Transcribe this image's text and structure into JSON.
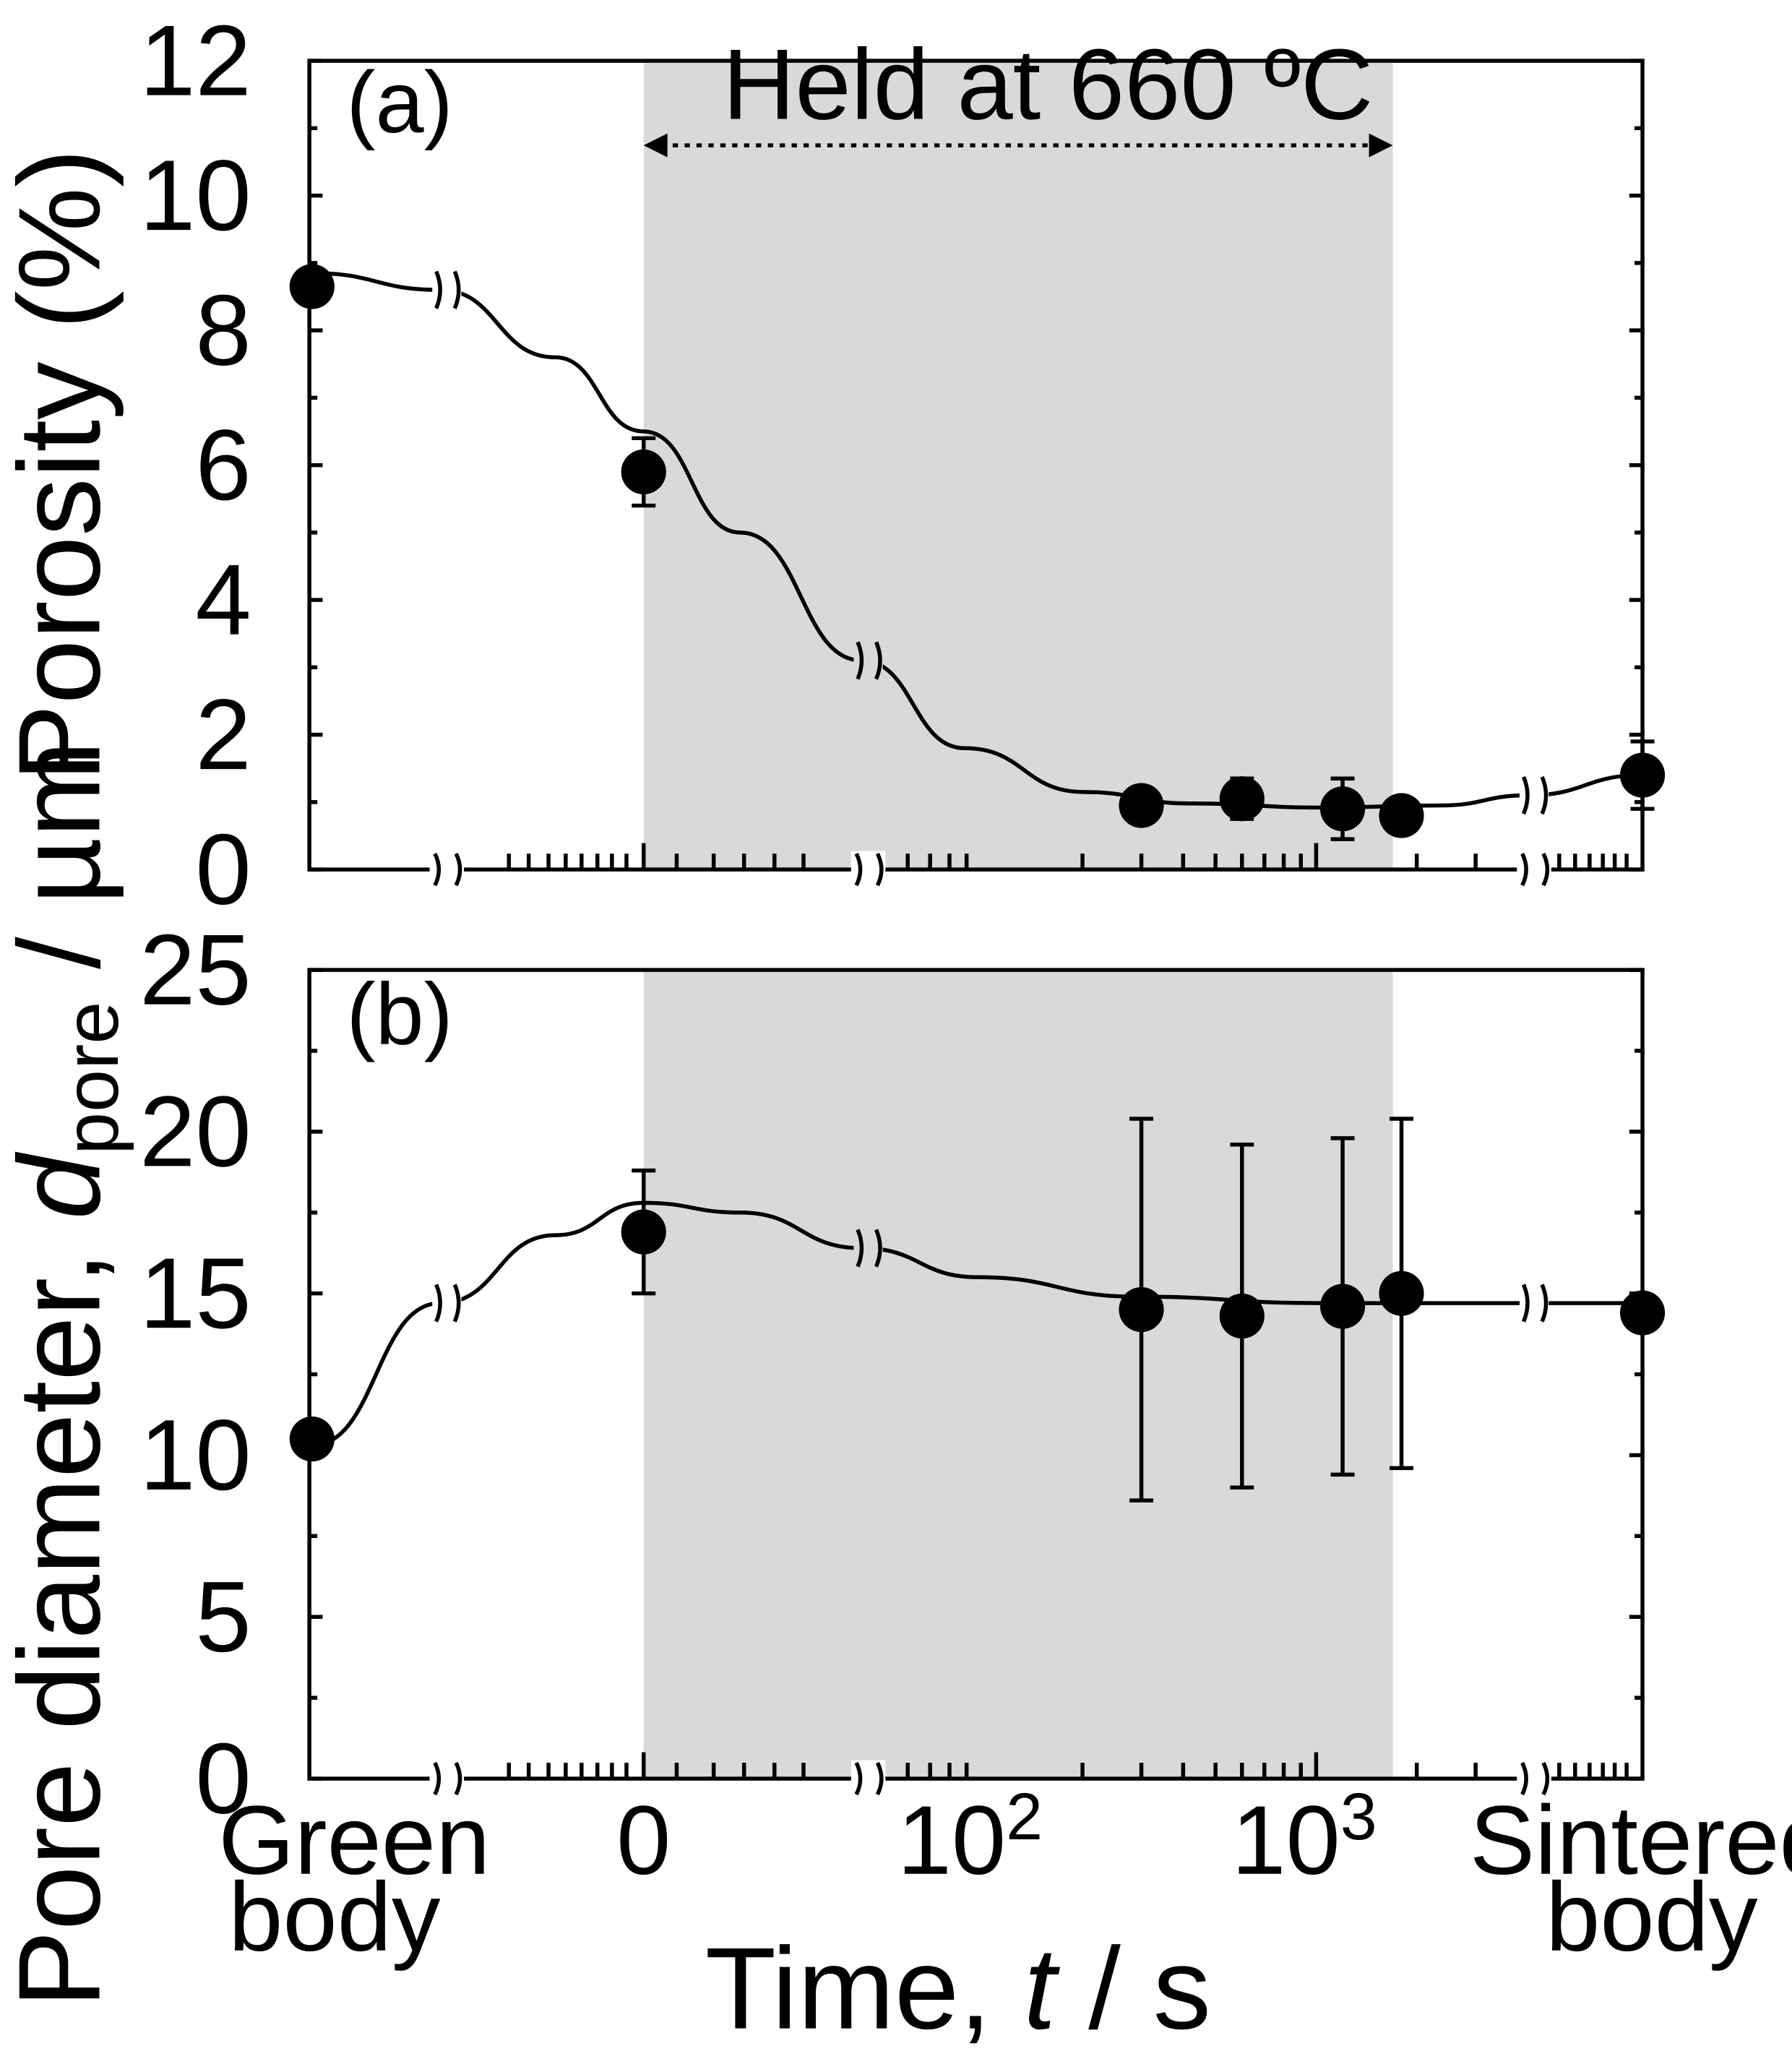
{
  "chart_data": [
    {
      "type": "scatter",
      "panel_label": "(a)",
      "ylabel": "Porosity (%)",
      "ylim": [
        0,
        12
      ],
      "yticks": [
        "0",
        "2",
        "4",
        "6",
        "8",
        "10",
        "12"
      ],
      "annotation": "Held at 660 ºC",
      "shaded_region": {
        "from": "0",
        "to": "1800"
      },
      "x_categories": [
        "Green body",
        "0",
        "10^2",
        "10^3",
        "Sintered body"
      ],
      "points": [
        {
          "x": "Green body",
          "y": 8.65,
          "err": 0.2
        },
        {
          "x": 0,
          "y": 5.9,
          "err": 0.5
        },
        {
          "x": 300,
          "y": 0.95,
          "err": 0.1
        },
        {
          "x": 600,
          "y": 1.05,
          "err": 0.3
        },
        {
          "x": 1200,
          "y": 0.9,
          "err": 0.45
        },
        {
          "x": 1800,
          "y": 0.8,
          "err": 0.1
        },
        {
          "x": "Sintered body",
          "y": 1.4,
          "err": 0.5
        }
      ],
      "grid": false
    },
    {
      "type": "scatter",
      "panel_label": "(b)",
      "ylabel_main": "Pore diameter, ",
      "ylabel_var": "d",
      "ylabel_sub": "pore",
      "ylabel_unit": " / µm",
      "ylim": [
        0,
        25
      ],
      "yticks": [
        "0",
        "5",
        "10",
        "15",
        "20",
        "25"
      ],
      "shaded_region": {
        "from": "0",
        "to": "1800"
      },
      "points": [
        {
          "x": "Green body",
          "y": 10.5,
          "err": 0.0
        },
        {
          "x": 0,
          "y": 16.9,
          "err": 1.9
        },
        {
          "x": 300,
          "y": 14.5,
          "err": 5.9
        },
        {
          "x": 600,
          "y": 14.3,
          "err": 5.3
        },
        {
          "x": 1200,
          "y": 14.6,
          "err": 5.2
        },
        {
          "x": 1800,
          "y": 15.0,
          "err": 5.4
        },
        {
          "x": "Sintered body",
          "y": 14.4,
          "err": 0.0
        }
      ],
      "grid": false
    }
  ],
  "xaxis": {
    "title_main": "Time, ",
    "title_var": "t",
    "title_unit": " / s",
    "tick_green_1": "Green",
    "tick_green_2": "body",
    "tick_zero": "0",
    "tick_100_base": "10",
    "tick_100_exp": "2",
    "tick_1000_base": "10",
    "tick_1000_exp": "3",
    "tick_sint_1": "Sintered",
    "tick_sint_2": "body"
  },
  "colors": {
    "shade": "#d9d9d9",
    "ink": "#000000"
  }
}
